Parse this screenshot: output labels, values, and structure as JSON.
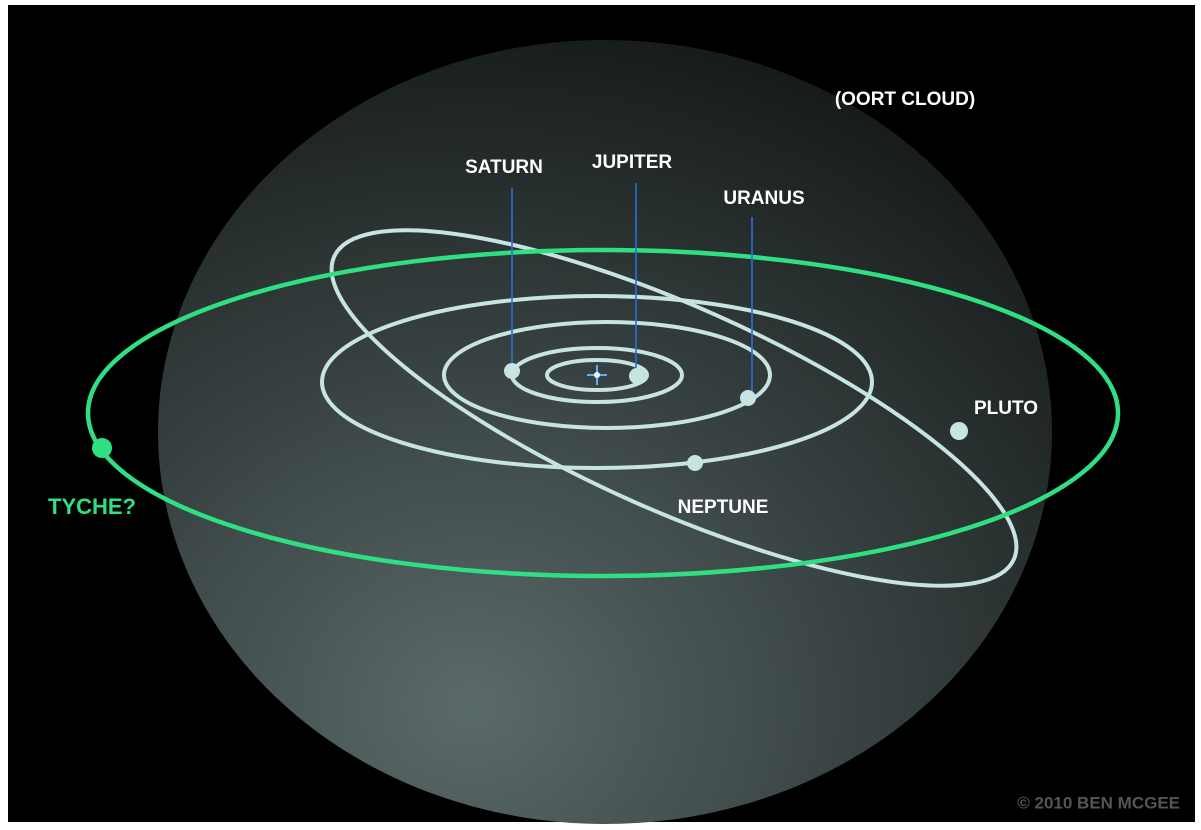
{
  "labels": {
    "oort_cloud": "(OORT CLOUD)",
    "saturn": "SATURN",
    "jupiter": "JUPITER",
    "uranus": "URANUS",
    "pluto": "PLUTO",
    "neptune": "NEPTUNE",
    "tyche": "TYCHE?"
  },
  "credit": "© 2010 BEN MCGEE"
}
